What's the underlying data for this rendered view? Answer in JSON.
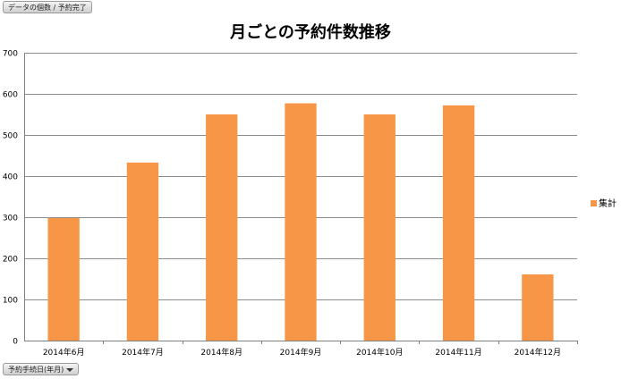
{
  "header": {
    "field_label": "データの個数 / 予約完了"
  },
  "footer": {
    "axis_field_label": "予約手続日(年月)"
  },
  "colors": {
    "bar": "#f79646",
    "grid": "#8c8c8c",
    "axis": "#808080"
  },
  "chart_data": {
    "type": "bar",
    "title": "月ごとの予約件数推移",
    "categories": [
      "2014年6月",
      "2014年7月",
      "2014年8月",
      "2014年9月",
      "2014年10月",
      "2014年11月",
      "2014年12月"
    ],
    "series": [
      {
        "name": "集計",
        "values": [
          298,
          433,
          550,
          577,
          550,
          572,
          161
        ]
      }
    ],
    "ylim": [
      0,
      700
    ],
    "yticks": [
      0,
      100,
      200,
      300,
      400,
      500,
      600,
      700
    ],
    "grid": true,
    "legend": "right"
  }
}
